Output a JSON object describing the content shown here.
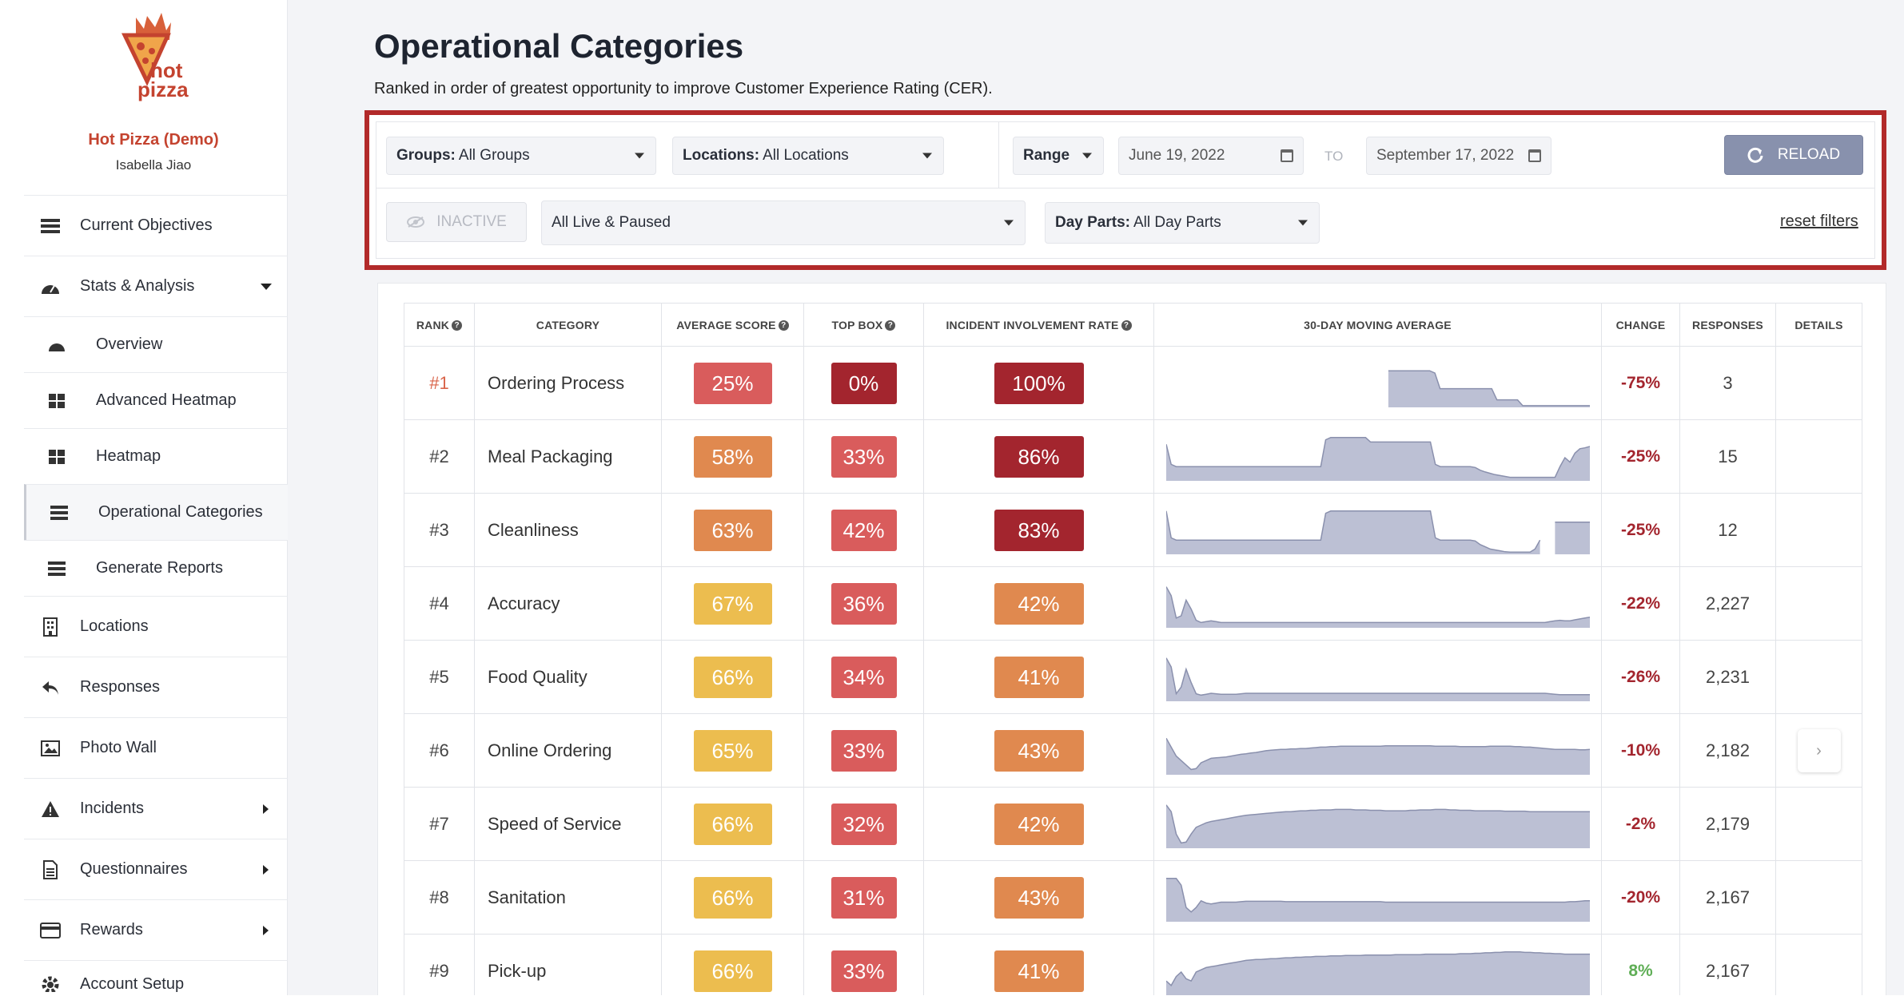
{
  "brand": {
    "logo_text_1": "hot",
    "logo_text_2": "pizza",
    "name": "Hot Pizza (Demo)",
    "user": "Isabella Jiao"
  },
  "sidebar": {
    "items": [
      {
        "label": "Current Objectives",
        "icon": "objectives-icon"
      },
      {
        "label": "Stats & Analysis",
        "icon": "dashboard-icon"
      },
      {
        "label": "Overview",
        "icon": "dashboard-icon"
      },
      {
        "label": "Advanced Heatmap",
        "icon": "grid-icon"
      },
      {
        "label": "Heatmap",
        "icon": "grid-icon"
      },
      {
        "label": "Operational Categories",
        "icon": "list-icon"
      },
      {
        "label": "Generate Reports",
        "icon": "list-icon"
      },
      {
        "label": "Locations",
        "icon": "building-icon"
      },
      {
        "label": "Responses",
        "icon": "reply-icon"
      },
      {
        "label": "Photo Wall",
        "icon": "image-icon"
      },
      {
        "label": "Incidents",
        "icon": "warning-icon"
      },
      {
        "label": "Questionnaires",
        "icon": "document-icon"
      },
      {
        "label": "Rewards",
        "icon": "card-icon"
      },
      {
        "label": "Account Setup",
        "icon": "gear-icon"
      }
    ]
  },
  "page": {
    "title": "Operational Categories",
    "subtitle": "Ranked in order of greatest opportunity to improve Customer Experience Rating (CER)."
  },
  "filters": {
    "groups_label": "Groups:",
    "groups_value": "All Groups",
    "locations_label": "Locations:",
    "locations_value": "All Locations",
    "range_label": "Range",
    "date_from": "June 19, 2022",
    "to_label": "TO",
    "date_to": "September 17, 2022",
    "reload_label": "RELOAD",
    "inactive_label": "INACTIVE",
    "status_value": "All Live & Paused",
    "dayparts_label": "Day Parts:",
    "dayparts_value": "All Day Parts",
    "reset_label": "reset filters"
  },
  "table": {
    "headers": {
      "rank": "RANK",
      "category": "CATEGORY",
      "avg": "AVERAGE SCORE",
      "topbox": "TOP BOX",
      "incident": "INCIDENT INVOLVEMENT RATE",
      "moving": "30-DAY MOVING AVERAGE",
      "change": "CHANGE",
      "responses": "RESPONSES",
      "details": "DETAILS"
    },
    "rows": [
      {
        "rank": "#1",
        "category": "Ordering Process",
        "avg": "25%",
        "topbox": "0%",
        "incident": "100%",
        "change": "-75%",
        "responses": "3",
        "avg_color": "#d95c5c",
        "top_color": "#a3252e",
        "inc_color": "#a3252e",
        "spark": [
          0,
          0,
          0,
          0,
          0,
          0,
          0,
          0,
          0,
          0,
          0,
          0,
          0,
          0,
          0,
          0,
          0,
          0,
          0,
          0,
          0,
          0,
          0,
          0,
          0,
          0,
          0,
          0,
          0,
          0,
          0,
          0,
          0,
          0,
          0,
          0,
          0,
          0,
          0,
          0,
          0,
          0,
          0.8,
          0.8,
          0.8,
          0.8,
          0.8,
          0.8,
          0.8,
          0.8,
          0.8,
          0.8,
          0.75,
          0.4,
          0.4,
          0.4,
          0.4,
          0.4,
          0.4,
          0.4,
          0.4,
          0.4,
          0.4,
          0.4,
          0.15,
          0.15,
          0.15,
          0.15,
          0.15,
          0.02,
          0.02,
          0.02,
          0.02,
          0.02,
          0.02,
          0.02,
          0.02,
          0.02,
          0.02,
          0.02,
          0.02,
          0.02,
          0.02
        ],
        "spark_start": 43
      },
      {
        "rank": "#2",
        "category": "Meal Packaging",
        "avg": "58%",
        "topbox": "33%",
        "incident": "86%",
        "change": "-25%",
        "responses": "15",
        "avg_color": "#e0894f",
        "top_color": "#d95c5c",
        "inc_color": "#a3252e",
        "spark": [
          0.8,
          0.35,
          0.3,
          0.3,
          0.3,
          0.3,
          0.3,
          0.3,
          0.3,
          0.3,
          0.3,
          0.3,
          0.3,
          0.3,
          0.3,
          0.3,
          0.3,
          0.3,
          0.3,
          0.3,
          0.3,
          0.3,
          0.3,
          0.3,
          0.3,
          0.3,
          0.3,
          0.3,
          0.3,
          0.3,
          0.3,
          0.3,
          0.9,
          0.95,
          0.95,
          0.95,
          0.95,
          0.95,
          0.95,
          0.95,
          0.95,
          0.85,
          0.85,
          0.85,
          0.85,
          0.85,
          0.85,
          0.85,
          0.85,
          0.85,
          0.85,
          0.85,
          0.85,
          0.85,
          0.35,
          0.3,
          0.3,
          0.3,
          0.3,
          0.3,
          0.3,
          0.3,
          0.28,
          0.22,
          0.18,
          0.15,
          0.12,
          0.1,
          0.08,
          0.06,
          0.06,
          0.06,
          0.06,
          0.06,
          0.06,
          0.06,
          0.06,
          0.06,
          0.06,
          0.3,
          0.5,
          0.4,
          0.6,
          0.7,
          0.72,
          0.75
        ],
        "spark_start": 0
      },
      {
        "rank": "#3",
        "category": "Cleanliness",
        "avg": "63%",
        "topbox": "42%",
        "incident": "83%",
        "change": "-25%",
        "responses": "12",
        "avg_color": "#e0894f",
        "top_color": "#d95c5c",
        "inc_color": "#a3252e",
        "spark": [
          0.95,
          0.35,
          0.3,
          0.3,
          0.3,
          0.3,
          0.3,
          0.3,
          0.3,
          0.3,
          0.3,
          0.3,
          0.3,
          0.3,
          0.3,
          0.3,
          0.3,
          0.3,
          0.3,
          0.3,
          0.3,
          0.3,
          0.3,
          0.3,
          0.3,
          0.3,
          0.3,
          0.3,
          0.3,
          0.3,
          0.3,
          0.3,
          0.9,
          0.95,
          0.95,
          0.95,
          0.95,
          0.95,
          0.95,
          0.95,
          0.95,
          0.95,
          0.95,
          0.95,
          0.95,
          0.95,
          0.95,
          0.95,
          0.95,
          0.95,
          0.95,
          0.95,
          0.95,
          0.95,
          0.35,
          0.3,
          0.3,
          0.3,
          0.3,
          0.3,
          0.3,
          0.3,
          0.28,
          0.2,
          0.15,
          0.1,
          0.08,
          0.06,
          0.04,
          0.03,
          0.03,
          0.03,
          0.03,
          0.03,
          0.1,
          0.3,
          0.55,
          0.7,
          0.7,
          0.7,
          0.7,
          0.7,
          0.7,
          0.7,
          0.7,
          0.7
        ],
        "spark_start": 0,
        "spark_gap": [
          76,
          78
        ]
      },
      {
        "rank": "#4",
        "category": "Accuracy",
        "avg": "67%",
        "topbox": "36%",
        "incident": "42%",
        "change": "-22%",
        "responses": "2,227",
        "avg_color": "#ecbd4f",
        "top_color": "#d95c5c",
        "inc_color": "#e0894f",
        "spark": [
          0.9,
          0.7,
          0.2,
          0.25,
          0.6,
          0.4,
          0.15,
          0.1,
          0.12,
          0.14,
          0.12,
          0.1,
          0.1,
          0.1,
          0.1,
          0.1,
          0.1,
          0.1,
          0.1,
          0.1,
          0.1,
          0.1,
          0.1,
          0.1,
          0.1,
          0.1,
          0.1,
          0.1,
          0.1,
          0.1,
          0.1,
          0.1,
          0.1,
          0.1,
          0.1,
          0.1,
          0.1,
          0.1,
          0.1,
          0.1,
          0.1,
          0.1,
          0.1,
          0.1,
          0.1,
          0.1,
          0.1,
          0.1,
          0.1,
          0.1,
          0.1,
          0.1,
          0.1,
          0.1,
          0.1,
          0.1,
          0.1,
          0.1,
          0.1,
          0.1,
          0.1,
          0.1,
          0.1,
          0.1,
          0.1,
          0.1,
          0.1,
          0.1,
          0.1,
          0.1,
          0.1,
          0.1,
          0.1,
          0.1,
          0.1,
          0.1,
          0.1,
          0.12,
          0.14,
          0.15,
          0.14,
          0.14,
          0.16,
          0.18,
          0.2,
          0.22
        ],
        "spark_start": 0
      },
      {
        "rank": "#5",
        "category": "Food Quality",
        "avg": "66%",
        "topbox": "34%",
        "incident": "41%",
        "change": "-26%",
        "responses": "2,231",
        "avg_color": "#ecbd4f",
        "top_color": "#d95c5c",
        "inc_color": "#e0894f",
        "spark": [
          0.95,
          0.75,
          0.15,
          0.3,
          0.7,
          0.4,
          0.15,
          0.12,
          0.14,
          0.16,
          0.15,
          0.14,
          0.14,
          0.14,
          0.14,
          0.15,
          0.16,
          0.16,
          0.16,
          0.16,
          0.16,
          0.16,
          0.16,
          0.16,
          0.16,
          0.16,
          0.16,
          0.16,
          0.16,
          0.16,
          0.16,
          0.16,
          0.16,
          0.16,
          0.16,
          0.16,
          0.16,
          0.16,
          0.16,
          0.16,
          0.16,
          0.16,
          0.16,
          0.16,
          0.16,
          0.16,
          0.16,
          0.16,
          0.16,
          0.16,
          0.16,
          0.16,
          0.16,
          0.16,
          0.16,
          0.16,
          0.16,
          0.16,
          0.16,
          0.16,
          0.16,
          0.16,
          0.16,
          0.16,
          0.16,
          0.16,
          0.16,
          0.16,
          0.16,
          0.16,
          0.16,
          0.16,
          0.16,
          0.16,
          0.16,
          0.16,
          0.16,
          0.15,
          0.14,
          0.13,
          0.13,
          0.13,
          0.13,
          0.13,
          0.13,
          0.13
        ],
        "spark_start": 0
      },
      {
        "rank": "#6",
        "category": "Online Ordering",
        "avg": "65%",
        "topbox": "33%",
        "incident": "43%",
        "change": "-10%",
        "responses": "2,182",
        "avg_color": "#ecbd4f",
        "top_color": "#d95c5c",
        "inc_color": "#e0894f",
        "spark": [
          0.8,
          0.6,
          0.4,
          0.3,
          0.2,
          0.1,
          0.12,
          0.25,
          0.3,
          0.35,
          0.36,
          0.37,
          0.38,
          0.4,
          0.42,
          0.44,
          0.45,
          0.47,
          0.48,
          0.5,
          0.52,
          0.53,
          0.54,
          0.55,
          0.55,
          0.56,
          0.56,
          0.57,
          0.57,
          0.58,
          0.59,
          0.6,
          0.6,
          0.61,
          0.61,
          0.62,
          0.62,
          0.62,
          0.62,
          0.62,
          0.62,
          0.62,
          0.62,
          0.62,
          0.63,
          0.63,
          0.63,
          0.63,
          0.63,
          0.63,
          0.63,
          0.63,
          0.63,
          0.63,
          0.62,
          0.62,
          0.62,
          0.62,
          0.62,
          0.61,
          0.61,
          0.61,
          0.61,
          0.61,
          0.61,
          0.62,
          0.62,
          0.62,
          0.62,
          0.62,
          0.61,
          0.61,
          0.6,
          0.6,
          0.59,
          0.58,
          0.57,
          0.56,
          0.55,
          0.55,
          0.55,
          0.55,
          0.55,
          0.54,
          0.54,
          0.55
        ],
        "spark_start": 0
      },
      {
        "rank": "#7",
        "category": "Speed of Service",
        "avg": "66%",
        "topbox": "32%",
        "incident": "42%",
        "change": "-2%",
        "responses": "2,179",
        "avg_color": "#ecbd4f",
        "top_color": "#d95c5c",
        "inc_color": "#e0894f",
        "spark": [
          0.95,
          0.8,
          0.3,
          0.1,
          0.12,
          0.3,
          0.45,
          0.5,
          0.55,
          0.58,
          0.6,
          0.62,
          0.64,
          0.66,
          0.68,
          0.7,
          0.72,
          0.73,
          0.74,
          0.75,
          0.76,
          0.77,
          0.78,
          0.79,
          0.8,
          0.8,
          0.81,
          0.82,
          0.82,
          0.83,
          0.83,
          0.84,
          0.84,
          0.84,
          0.85,
          0.85,
          0.85,
          0.85,
          0.84,
          0.84,
          0.84,
          0.83,
          0.83,
          0.83,
          0.82,
          0.82,
          0.82,
          0.82,
          0.82,
          0.83,
          0.83,
          0.84,
          0.84,
          0.84,
          0.85,
          0.85,
          0.85,
          0.84,
          0.84,
          0.83,
          0.83,
          0.83,
          0.82,
          0.82,
          0.82,
          0.82,
          0.82,
          0.82,
          0.81,
          0.81,
          0.81,
          0.81,
          0.81,
          0.8,
          0.8,
          0.8,
          0.8,
          0.8,
          0.8,
          0.8,
          0.8,
          0.8,
          0.8,
          0.8,
          0.8,
          0.8
        ],
        "spark_start": 0
      },
      {
        "rank": "#8",
        "category": "Sanitation",
        "avg": "66%",
        "topbox": "31%",
        "incident": "43%",
        "change": "-20%",
        "responses": "2,167",
        "avg_color": "#ecbd4f",
        "top_color": "#d95c5c",
        "inc_color": "#e0894f",
        "spark": [
          0.95,
          0.95,
          0.95,
          0.8,
          0.3,
          0.2,
          0.3,
          0.45,
          0.4,
          0.38,
          0.4,
          0.42,
          0.42,
          0.42,
          0.42,
          0.43,
          0.44,
          0.44,
          0.44,
          0.44,
          0.44,
          0.44,
          0.44,
          0.44,
          0.43,
          0.43,
          0.43,
          0.43,
          0.43,
          0.43,
          0.43,
          0.43,
          0.43,
          0.43,
          0.43,
          0.43,
          0.43,
          0.43,
          0.43,
          0.43,
          0.43,
          0.43,
          0.43,
          0.43,
          0.42,
          0.42,
          0.42,
          0.42,
          0.42,
          0.42,
          0.42,
          0.42,
          0.42,
          0.42,
          0.42,
          0.42,
          0.42,
          0.42,
          0.42,
          0.42,
          0.42,
          0.42,
          0.42,
          0.42,
          0.42,
          0.42,
          0.42,
          0.42,
          0.42,
          0.42,
          0.42,
          0.42,
          0.42,
          0.42,
          0.42,
          0.42,
          0.42,
          0.42,
          0.42,
          0.42,
          0.42,
          0.43,
          0.43,
          0.44,
          0.45,
          0.45
        ],
        "spark_start": 0
      },
      {
        "rank": "#9",
        "category": "Pick-up",
        "avg": "66%",
        "topbox": "33%",
        "incident": "41%",
        "change": "8%",
        "responses": "2,167",
        "avg_color": "#ecbd4f",
        "top_color": "#d95c5c",
        "inc_color": "#e0894f",
        "spark": [
          0.3,
          0.2,
          0.4,
          0.5,
          0.35,
          0.3,
          0.5,
          0.55,
          0.6,
          0.62,
          0.64,
          0.66,
          0.68,
          0.7,
          0.72,
          0.74,
          0.76,
          0.77,
          0.78,
          0.78,
          0.79,
          0.8,
          0.8,
          0.81,
          0.82,
          0.82,
          0.83,
          0.83,
          0.84,
          0.84,
          0.85,
          0.85,
          0.85,
          0.86,
          0.86,
          0.86,
          0.87,
          0.87,
          0.87,
          0.87,
          0.88,
          0.88,
          0.88,
          0.88,
          0.88,
          0.88,
          0.89,
          0.89,
          0.89,
          0.89,
          0.89,
          0.89,
          0.9,
          0.9,
          0.9,
          0.9,
          0.9,
          0.9,
          0.9,
          0.91,
          0.91,
          0.91,
          0.92,
          0.92,
          0.93,
          0.93,
          0.94,
          0.94,
          0.95,
          0.95,
          0.95,
          0.95,
          0.94,
          0.94,
          0.93,
          0.93,
          0.92,
          0.92,
          0.91,
          0.91,
          0.9,
          0.9,
          0.9,
          0.9,
          0.9,
          0.9
        ],
        "spark_start": 0
      }
    ]
  }
}
